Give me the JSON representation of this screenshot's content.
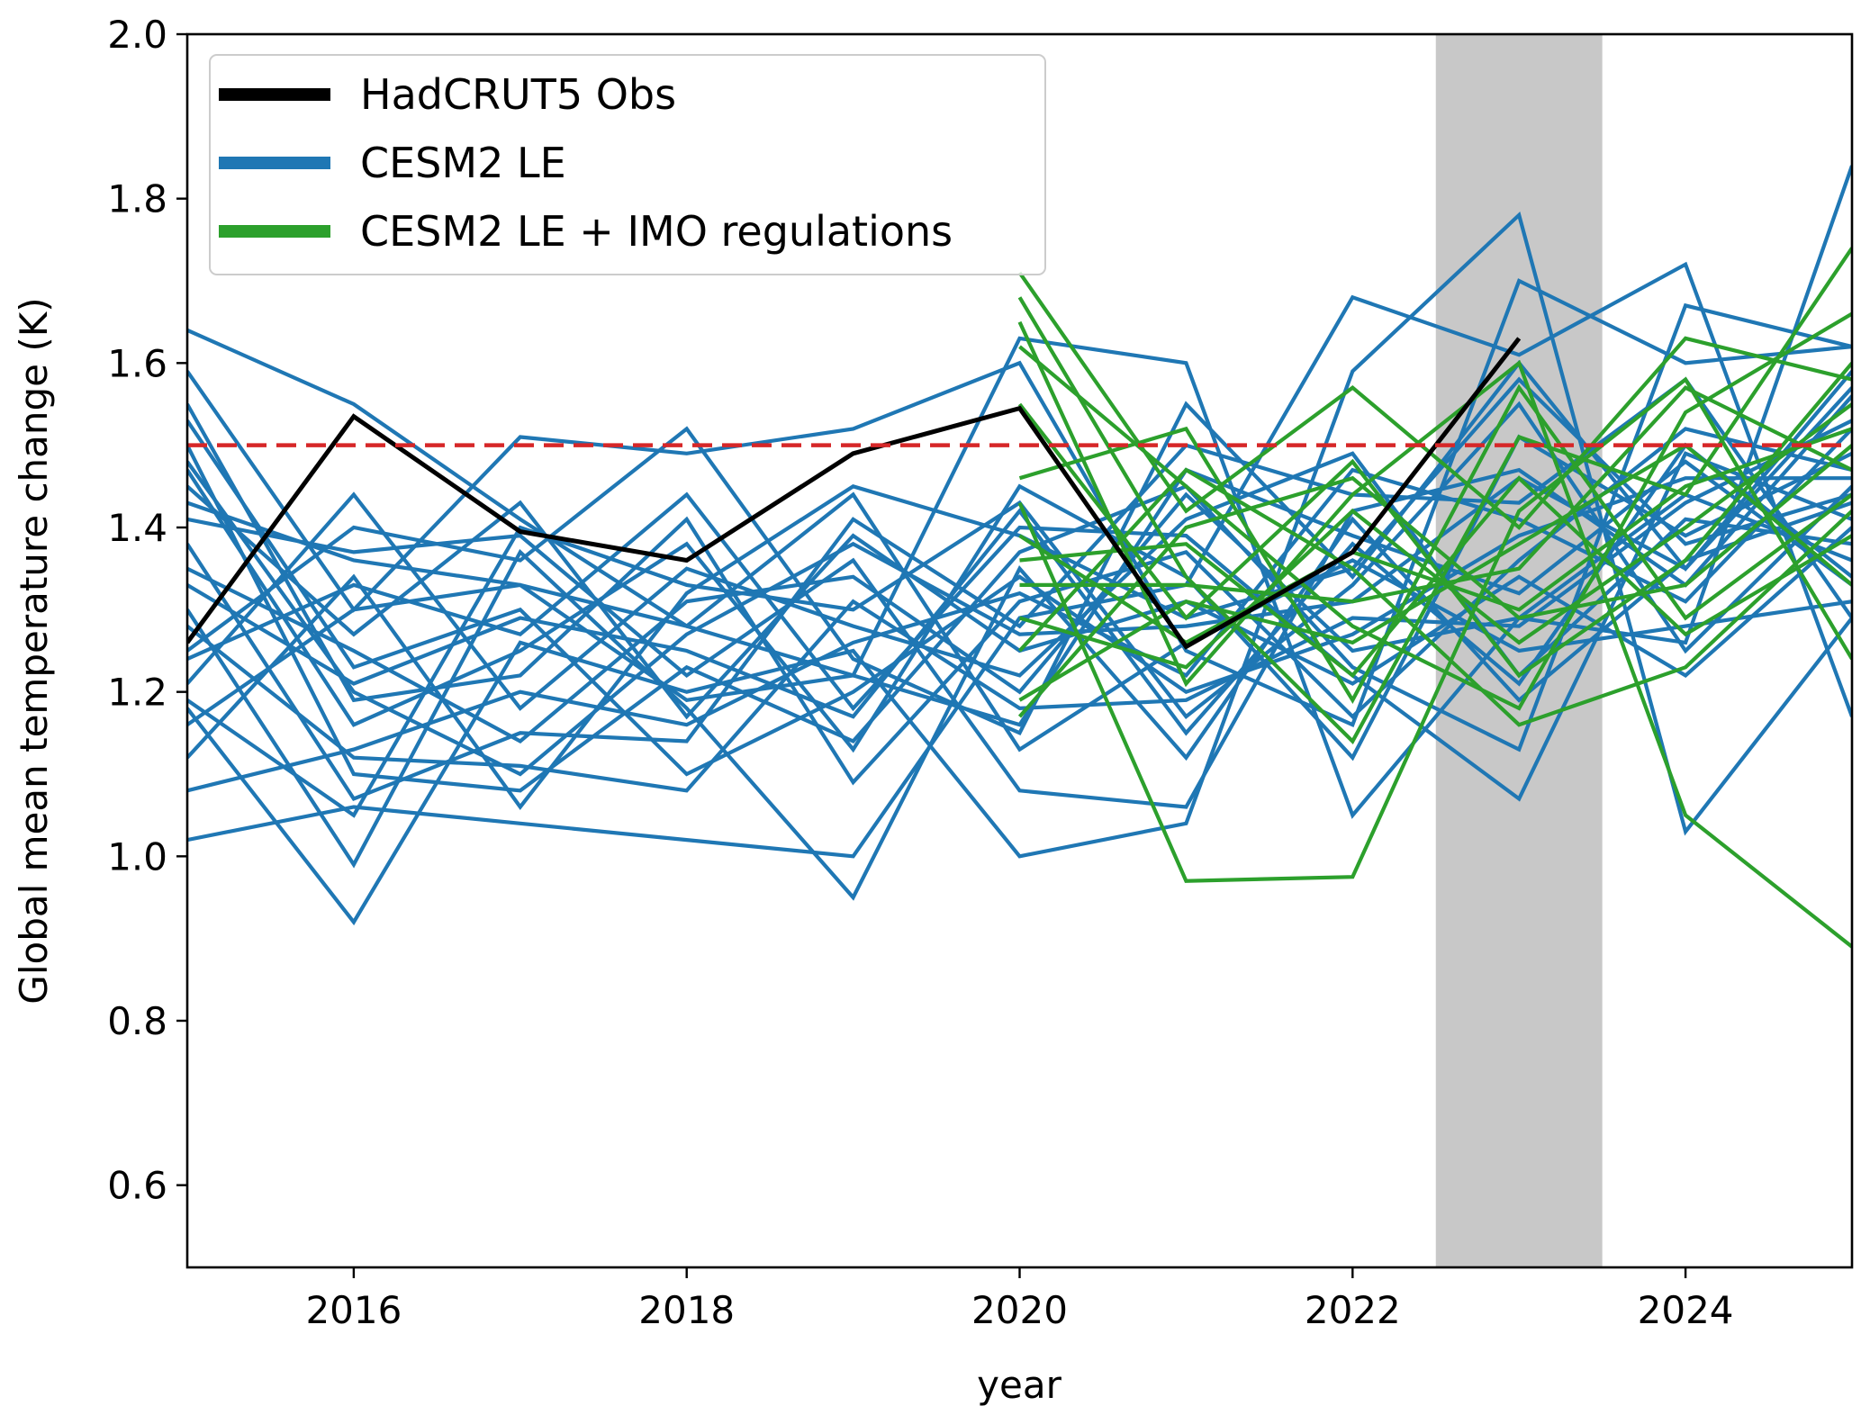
{
  "chart_data": {
    "type": "line",
    "xlabel": "year",
    "ylabel": "Global mean temperature change (K)",
    "xlim": [
      2015,
      2025
    ],
    "ylim": [
      0.5,
      2.0
    ],
    "x_ticks": [
      2016,
      2018,
      2020,
      2022,
      2024
    ],
    "y_ticks": [
      0.6,
      0.8,
      1.0,
      1.2,
      1.4,
      1.6,
      1.8,
      2.0
    ],
    "x_tick_labels": [
      "2016",
      "2018",
      "2020",
      "2022",
      "2024"
    ],
    "y_tick_labels": [
      "0.6",
      "0.8",
      "1.0",
      "1.2",
      "1.4",
      "1.6",
      "1.8",
      "2.0"
    ],
    "grid": false,
    "legend_position": "top-left",
    "reference_line": {
      "y": 1.5,
      "style": "dashed",
      "color": "#d62728"
    },
    "shaded_region": {
      "x": [
        2022.5,
        2023.5
      ],
      "color": "#c8c8c8"
    },
    "series": [
      {
        "name": "HadCRUT5 Obs",
        "color": "#000000",
        "x": [
          2015,
          2016,
          2017,
          2018,
          2019,
          2020,
          2021,
          2022,
          2023
        ],
        "y": [
          1.26,
          1.535,
          1.395,
          1.36,
          1.49,
          1.545,
          1.255,
          1.37,
          1.63
        ]
      },
      {
        "name": "CESM2 LE",
        "color": "#1f77b4",
        "x": [
          2015,
          2016,
          2017,
          2018,
          2019,
          2020,
          2021,
          2022,
          2023,
          2024,
          2025
        ],
        "members": [
          [
            1.64,
            1.55,
            1.41,
            1.28,
            1.22,
            1.63,
            1.6,
            1.05,
            1.29,
            1.26,
            1.84
          ],
          [
            1.02,
            1.06,
            1.04,
            1.02,
            1.0,
            1.29,
            1.33,
            1.68,
            1.61,
            1.72,
            1.17
          ],
          [
            1.18,
            0.92,
            1.26,
            1.2,
            1.25,
            1.0,
            1.04,
            1.59,
            1.78,
            1.03,
            1.29
          ],
          [
            1.59,
            1.3,
            1.51,
            1.49,
            1.52,
            1.6,
            1.25,
            1.16,
            1.7,
            1.6,
            1.62
          ],
          [
            1.5,
            1.1,
            1.08,
            1.23,
            1.14,
            1.37,
            1.45,
            1.23,
            1.13,
            1.67,
            1.62
          ],
          [
            1.25,
            1.4,
            1.36,
            1.52,
            1.24,
            1.15,
            1.55,
            1.34,
            1.6,
            1.35,
            1.59
          ],
          [
            1.12,
            1.34,
            1.06,
            1.32,
            1.45,
            1.39,
            1.29,
            1.35,
            1.58,
            1.38,
            1.44
          ],
          [
            1.45,
            1.27,
            1.43,
            1.17,
            1.39,
            1.25,
            1.31,
            1.21,
            1.34,
            1.22,
            1.4
          ],
          [
            1.33,
            1.21,
            1.29,
            1.25,
            1.17,
            1.42,
            1.15,
            1.38,
            1.21,
            1.5,
            1.34
          ],
          [
            1.38,
            1.07,
            1.15,
            1.14,
            1.41,
            1.28,
            1.5,
            1.44,
            1.43,
            1.58,
            1.29
          ],
          [
            1.28,
            1.12,
            1.11,
            1.08,
            1.31,
            1.18,
            1.19,
            1.29,
            1.28,
            1.43,
            1.53
          ],
          [
            1.55,
            1.19,
            1.22,
            1.41,
            1.09,
            1.31,
            1.37,
            1.17,
            1.36,
            1.52,
            1.47
          ],
          [
            1.41,
            1.37,
            1.39,
            1.22,
            1.36,
            1.08,
            1.06,
            1.42,
            1.47,
            1.33,
            1.56
          ],
          [
            1.21,
            1.44,
            1.18,
            1.35,
            1.28,
            1.22,
            1.41,
            1.49,
            1.22,
            1.41,
            1.38
          ],
          [
            1.53,
            1.23,
            1.3,
            1.1,
            1.2,
            1.34,
            1.2,
            1.27,
            1.39,
            1.46,
            1.46
          ],
          [
            1.16,
            1.3,
            1.33,
            1.28,
            1.44,
            1.13,
            1.26,
            1.36,
            1.25,
            1.28,
            1.31
          ],
          [
            1.47,
            1.16,
            1.25,
            1.38,
            1.13,
            1.45,
            1.34,
            1.12,
            1.51,
            1.39,
            1.49
          ],
          [
            1.3,
            0.99,
            1.37,
            1.18,
            0.95,
            1.35,
            1.12,
            1.41,
            1.19,
            1.36,
            1.43
          ],
          [
            1.35,
            1.25,
            1.14,
            1.31,
            1.34,
            1.2,
            1.44,
            1.25,
            1.29,
            1.44,
            1.36
          ],
          [
            1.08,
            1.13,
            1.2,
            1.16,
            1.26,
            1.32,
            1.22,
            1.47,
            1.41,
            1.31,
            1.52
          ],
          [
            1.24,
            1.33,
            1.27,
            1.44,
            1.18,
            1.4,
            1.39,
            1.22,
            1.07,
            1.49,
            1.41
          ],
          [
            1.48,
            1.2,
            1.1,
            1.27,
            1.38,
            1.27,
            1.28,
            1.31,
            1.46,
            1.35,
            1.57
          ],
          [
            1.43,
            1.36,
            1.33,
            1.19,
            1.22,
            1.16,
            1.47,
            1.39,
            1.32,
            1.48,
            1.33
          ],
          [
            1.19,
            1.05,
            1.4,
            1.33,
            1.3,
            1.43,
            1.17,
            1.33,
            1.55,
            1.25,
            1.45
          ]
        ]
      },
      {
        "name": "CESM2 LE + IMO regulations",
        "color": "#2ca02c",
        "x": [
          2020,
          2021,
          2022,
          2023,
          2024,
          2025
        ],
        "members": [
          [
            1.71,
            1.42,
            1.57,
            1.4,
            1.63,
            1.58
          ],
          [
            1.68,
            1.34,
            1.14,
            1.51,
            1.44,
            1.74
          ],
          [
            1.65,
            1.21,
            1.44,
            1.6,
            1.05,
            0.89
          ],
          [
            1.62,
            1.45,
            1.28,
            1.18,
            1.54,
            1.66
          ],
          [
            1.55,
            1.29,
            1.48,
            1.22,
            1.36,
            1.6
          ],
          [
            1.46,
            1.52,
            1.19,
            1.57,
            1.29,
            1.44
          ],
          [
            1.43,
            0.97,
            0.975,
            1.42,
            1.58,
            1.24
          ],
          [
            1.39,
            1.26,
            1.37,
            1.3,
            1.45,
            1.52
          ],
          [
            1.36,
            1.38,
            1.22,
            1.46,
            1.27,
            1.39
          ],
          [
            1.33,
            1.33,
            1.31,
            1.35,
            1.57,
            1.47
          ],
          [
            1.29,
            1.23,
            1.42,
            1.26,
            1.4,
            1.55
          ],
          [
            1.25,
            1.47,
            1.35,
            1.16,
            1.23,
            1.42
          ],
          [
            1.19,
            1.31,
            1.26,
            1.38,
            1.5,
            1.33
          ],
          [
            1.17,
            1.4,
            1.46,
            1.29,
            1.33,
            1.5
          ]
        ]
      }
    ]
  }
}
